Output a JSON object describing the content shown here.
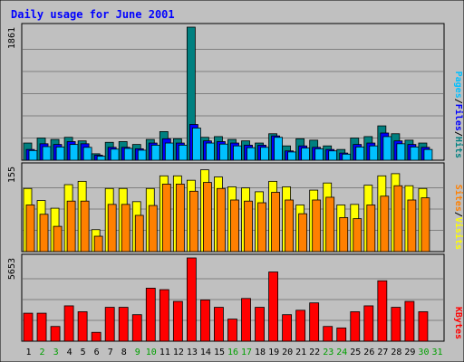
{
  "chart_data": {
    "type": "bar",
    "title": "Daily usage for June 2001",
    "categories": [
      "1",
      "2",
      "3",
      "4",
      "5",
      "6",
      "7",
      "8",
      "9",
      "10",
      "11",
      "12",
      "13",
      "14",
      "15",
      "16",
      "17",
      "18",
      "19",
      "20",
      "21",
      "22",
      "23",
      "24",
      "25",
      "26",
      "27",
      "28",
      "29",
      "30",
      "31"
    ],
    "weekend_days": [
      "2",
      "3",
      "9",
      "10",
      "16",
      "17",
      "23",
      "24",
      "30",
      "31"
    ],
    "panels": [
      {
        "name": "hits-files-pages",
        "ymax_label": "1861",
        "ymax": 1861,
        "legend": [
          "Pages",
          "/",
          "Files",
          "/",
          "Hits"
        ],
        "legend_colors": [
          "#00c0ff",
          "#000000",
          "#0000ff",
          "#000000",
          "#008080"
        ],
        "series": [
          {
            "name": "Hits",
            "color": "#008080",
            "values": [
              240,
              310,
              290,
              320,
              270,
              90,
              250,
              260,
              220,
              290,
              400,
              300,
              1861,
              320,
              330,
              290,
              270,
              240,
              370,
              200,
              300,
              280,
              200,
              150,
              310,
              330,
              480,
              370,
              280,
              240,
              0
            ]
          },
          {
            "name": "Files",
            "color": "#0000ff",
            "values": [
              150,
              230,
              220,
              260,
              230,
              70,
              180,
              180,
              160,
              240,
              300,
              240,
              500,
              270,
              260,
              240,
              210,
              210,
              340,
              130,
              200,
              180,
              150,
              100,
              220,
              240,
              380,
              270,
              220,
              180,
              0
            ]
          },
          {
            "name": "Pages",
            "color": "#00c0ff",
            "values": [
              135,
              190,
              185,
              220,
              180,
              55,
              155,
              165,
              140,
              210,
              240,
              210,
              450,
              240,
              225,
              200,
              175,
              180,
              320,
              115,
              170,
              160,
              130,
              85,
              185,
              200,
              330,
              230,
              185,
              150,
              0
            ]
          }
        ]
      },
      {
        "name": "visits-sites",
        "ymax_label": "155",
        "ymax": 155,
        "legend": [
          "Sites",
          "/",
          "Visits"
        ],
        "legend_colors": [
          "#ff8000",
          "#000000",
          "#ffff00"
        ],
        "series": [
          {
            "name": "Visits",
            "color": "#ffff00",
            "values": [
              115,
              93,
              79,
              122,
              128,
              40,
              115,
              115,
              91,
              115,
              138,
              138,
              130,
              149,
              136,
              118,
              116,
              109,
              128,
              118,
              85,
              112,
              125,
              85,
              86,
              121,
              138,
              142,
              120,
              115,
              0
            ]
          },
          {
            "name": "Sites",
            "color": "#ff8000",
            "values": [
              85,
              68,
              46,
              92,
              92,
              28,
              86,
              86,
              66,
              84,
              123,
              123,
              110,
              126,
              115,
              94,
              92,
              89,
              108,
              94,
              69,
              94,
              99,
              62,
              60,
              85,
              101,
              120,
              94,
              98,
              0
            ]
          }
        ]
      },
      {
        "name": "kbytes",
        "ymax_label": "5653",
        "ymax": 5653,
        "legend": [
          "KBytes"
        ],
        "legend_colors": [
          "#ff0000"
        ],
        "series": [
          {
            "name": "KBytes",
            "color": "#ff0000",
            "values": [
              1900,
              1900,
              1000,
              2400,
              2000,
              600,
              2300,
              2300,
              1800,
              3600,
              3500,
              2700,
              5653,
              2800,
              2300,
              1500,
              2900,
              2300,
              4700,
              1800,
              2100,
              2600,
              1000,
              900,
              2000,
              2400,
              4100,
              2300,
              2700,
              2000,
              0
            ]
          }
        ]
      }
    ]
  }
}
